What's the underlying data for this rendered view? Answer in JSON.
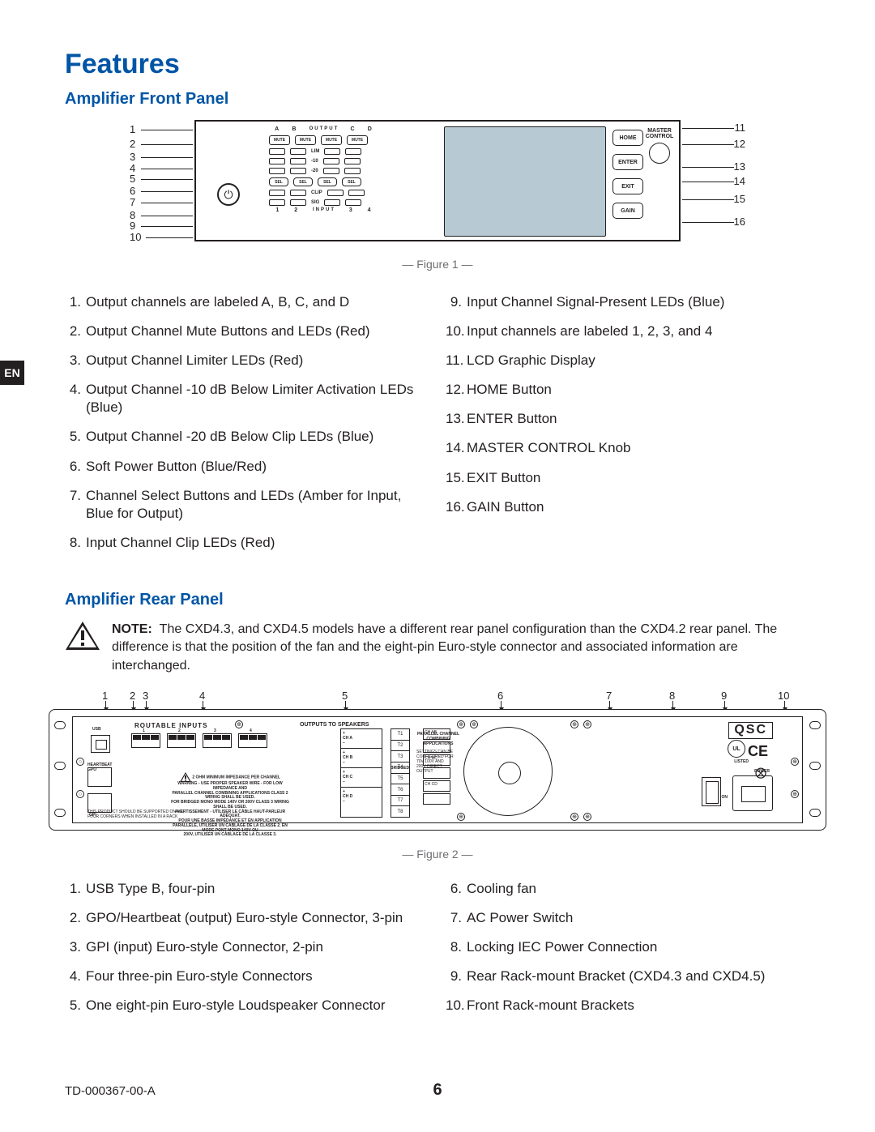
{
  "tab": "EN",
  "title": "Features",
  "section1": "Amplifier Front Panel",
  "section2": "Amplifier Rear Panel",
  "figure1_caption": "— Figure 1 —",
  "figure2_caption": "— Figure 2 —",
  "frontpanel": {
    "output_header_a": "A",
    "output_header_b": "B",
    "output_header_c": "C",
    "output_header_d": "D",
    "output_label": "OUTPUT",
    "mute": "MUTE",
    "lim": "LIM",
    "m10": "-10",
    "m20": "-20",
    "sel": "SEL",
    "clip": "CLIP",
    "sig": "SIG",
    "input_label": "INPUT",
    "in1": "1",
    "in2": "2",
    "in3": "3",
    "in4": "4",
    "home_btn": "HOME",
    "enter_btn": "ENTER",
    "exit_btn": "EXIT",
    "gain_btn": "GAIN",
    "master": "MASTER\nCONTROL",
    "power_glyph": "⏻",
    "leaders_left": {
      "1": "1",
      "2": "2",
      "3": "3",
      "4": "4",
      "5": "5",
      "6": "6",
      "7": "7",
      "8": "8",
      "9": "9",
      "10": "10"
    },
    "leaders_right": {
      "11": "11",
      "12": "12",
      "13": "13",
      "14": "14",
      "15": "15",
      "16": "16"
    }
  },
  "front_features_left": [
    {
      "n": "1.",
      "t": "Output channels are labeled A, B, C, and D"
    },
    {
      "n": "2.",
      "t": "Output Channel Mute Buttons and LEDs (Red)"
    },
    {
      "n": "3.",
      "t": "Output Channel Limiter LEDs (Red)"
    },
    {
      "n": "4.",
      "t": "Output Channel -10 dB Below Limiter Activation LEDs (Blue)"
    },
    {
      "n": "5.",
      "t": "Output Channel -20 dB Below Clip LEDs (Blue)"
    },
    {
      "n": "6.",
      "t": "Soft Power Button (Blue/Red)"
    },
    {
      "n": "7.",
      "t": "Channel Select Buttons and LEDs (Amber for Input, Blue for Output)"
    },
    {
      "n": "8.",
      "t": "Input Channel Clip LEDs (Red)"
    }
  ],
  "front_features_right": [
    {
      "n": "9.",
      "t": "Input Channel Signal-Present LEDs (Blue)"
    },
    {
      "n": "10.",
      "t": "Input channels are labeled 1, 2, 3, and 4"
    },
    {
      "n": "11.",
      "t": "LCD Graphic Display"
    },
    {
      "n": "12.",
      "t": "HOME Button"
    },
    {
      "n": "13.",
      "t": "ENTER Button"
    },
    {
      "n": "14.",
      "t": "MASTER CONTROL Knob"
    },
    {
      "n": "15.",
      "t": "EXIT Button"
    },
    {
      "n": "16.",
      "t": "GAIN Button"
    }
  ],
  "note_bold": "NOTE:",
  "note_text": "The CXD4.3, and CXD4.5 models have a different rear panel configuration than the CXD4.2 rear panel. The difference is that the position of the fan and the eight-pin Euro-style connector and associated information are interchanged.",
  "rearpanel": {
    "logo": "QSC",
    "routable": "ROUTABLE INPUTS",
    "usb": "USB",
    "outputs": "OUTPUTS TO SPEAKERS",
    "heartbeat": "HEARTBEAT\nGPO",
    "gpi": "GPI",
    "cha": "+\nCH A\n−",
    "chb": "+\nCH B\n−",
    "chc": "+\nCH C\n−",
    "chd": "+\nCH D\n−",
    "t1": "T1",
    "t2": "T2",
    "t3": "T3",
    "t4": "T4",
    "t5": "T5",
    "t6": "T6",
    "t7": "T7",
    "t8": "T8",
    "bridged": "BRIDGED",
    "parallel": "PARALLEL CHANNEL\nCOMBINING APPLICATIONS",
    "cfg": "SETTINGS CAN BE\nCONFIGURED FOR\n70V 100V AND\n200V DIRECT\nOUTPUT",
    "warning": "2 OHM MINIMUM IMPEDANCE PER CHANNEL\nWARNING - USE PROPER SPEAKER WIRE - FOR LOW IMPEDANCE AND\nPARALLEL CHANNEL COMBINING APPLICATIONS CLASS 2 WIRING SHALL BE USED.\nFOR BRIDGED MONO MODE 140V OR 200V CLASS 3 WIRING SHALL BE USED.\nAVERTISSEMENT - UTILISER LE CÂBLE HAUT-PARLEUR ADÉQUAT.\nPOUR UNE BASSE IMPÉDANCE ET EN APPLICATION\nPARALLÈLE, UTILISER UN CÂBLAGE DE LA CLASSE 2. EN MODE PONT MONO 140V OU\n200V, UTILISER UN CÂBLAGE DE LA CLASSE 3.",
    "rack_note": "THIS PRODUCT SHOULD BE SUPPORTED ON ALL\nFOUR CORNERS WHEN INSTALLED IN A RACK",
    "power": "POWER",
    "on": "ON",
    "ce": "CE",
    "ul": "UL",
    "listed": "LISTED",
    "nums": {
      "1": "1",
      "2": "2",
      "3": "3",
      "4": "4",
      "5": "5",
      "6": "6",
      "7": "7",
      "8": "8",
      "9": "9",
      "10": "10"
    }
  },
  "rear_features_left": [
    {
      "n": "1.",
      "t": "USB Type B, four-pin"
    },
    {
      "n": "2.",
      "t": "GPO/Heartbeat (output) Euro-style Connector, 3-pin"
    },
    {
      "n": "3.",
      "t": "GPI (input) Euro-style Connector, 2-pin"
    },
    {
      "n": "4.",
      "t": "Four three-pin Euro-style Connectors"
    },
    {
      "n": "5.",
      "t": "One eight-pin Euro-style Loudspeaker Connector"
    }
  ],
  "rear_features_right": [
    {
      "n": "6.",
      "t": "Cooling fan"
    },
    {
      "n": "7.",
      "t": "AC Power Switch"
    },
    {
      "n": "8.",
      "t": "Locking IEC Power Connection"
    },
    {
      "n": "9.",
      "t": "Rear Rack-mount Bracket (CXD4.3 and CXD4.5)"
    },
    {
      "n": "10.",
      "t": "Front Rack-mount Brackets"
    }
  ],
  "footer_doc": "TD-000367-00-A",
  "footer_page": "6"
}
